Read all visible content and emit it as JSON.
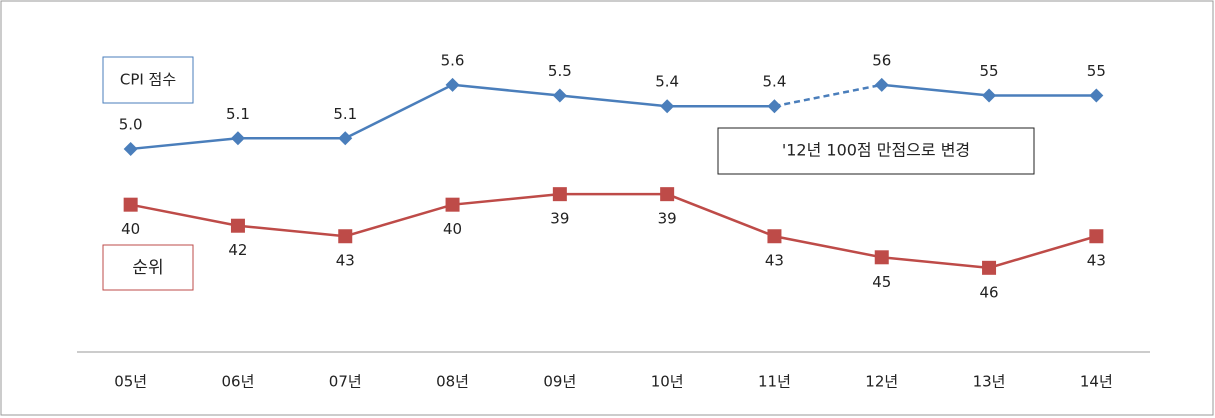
{
  "chart_data": {
    "type": "line",
    "categories": [
      "05년",
      "06년",
      "07년",
      "08년",
      "09년",
      "10년",
      "11년",
      "12년",
      "13년",
      "14년"
    ],
    "series": [
      {
        "color": "#4a7ebb",
        "values": [
          5.0,
          5.1,
          5.1,
          5.6,
          5.5,
          5.4,
          5.4,
          null,
          null,
          null
        ],
        "value_labels": [
          "5.0",
          "5.1",
          "5.1",
          "5.6",
          "5.5",
          "5.4",
          "5.4",
          null,
          null,
          null
        ]
      },
      {
        "color": "#4a7ebb",
        "axis": "y2",
        "values": [
          null,
          null,
          null,
          null,
          null,
          null,
          null,
          56,
          55,
          55
        ]
      },
      {
        "color": "#be4b48",
        "axis": "y3",
        "values": [
          40,
          42,
          43,
          40,
          39,
          39,
          43,
          45,
          46,
          43
        ]
      }
    ],
    "ylim": [
      3.1,
      6.3
    ],
    "y2lim": [
      31,
      63
    ],
    "y3lim": [
      54,
      21.5
    ],
    "annotations": [
      "CPI 점수",
      "순위",
      "'12년 100점 만점으로 변경"
    ]
  }
}
